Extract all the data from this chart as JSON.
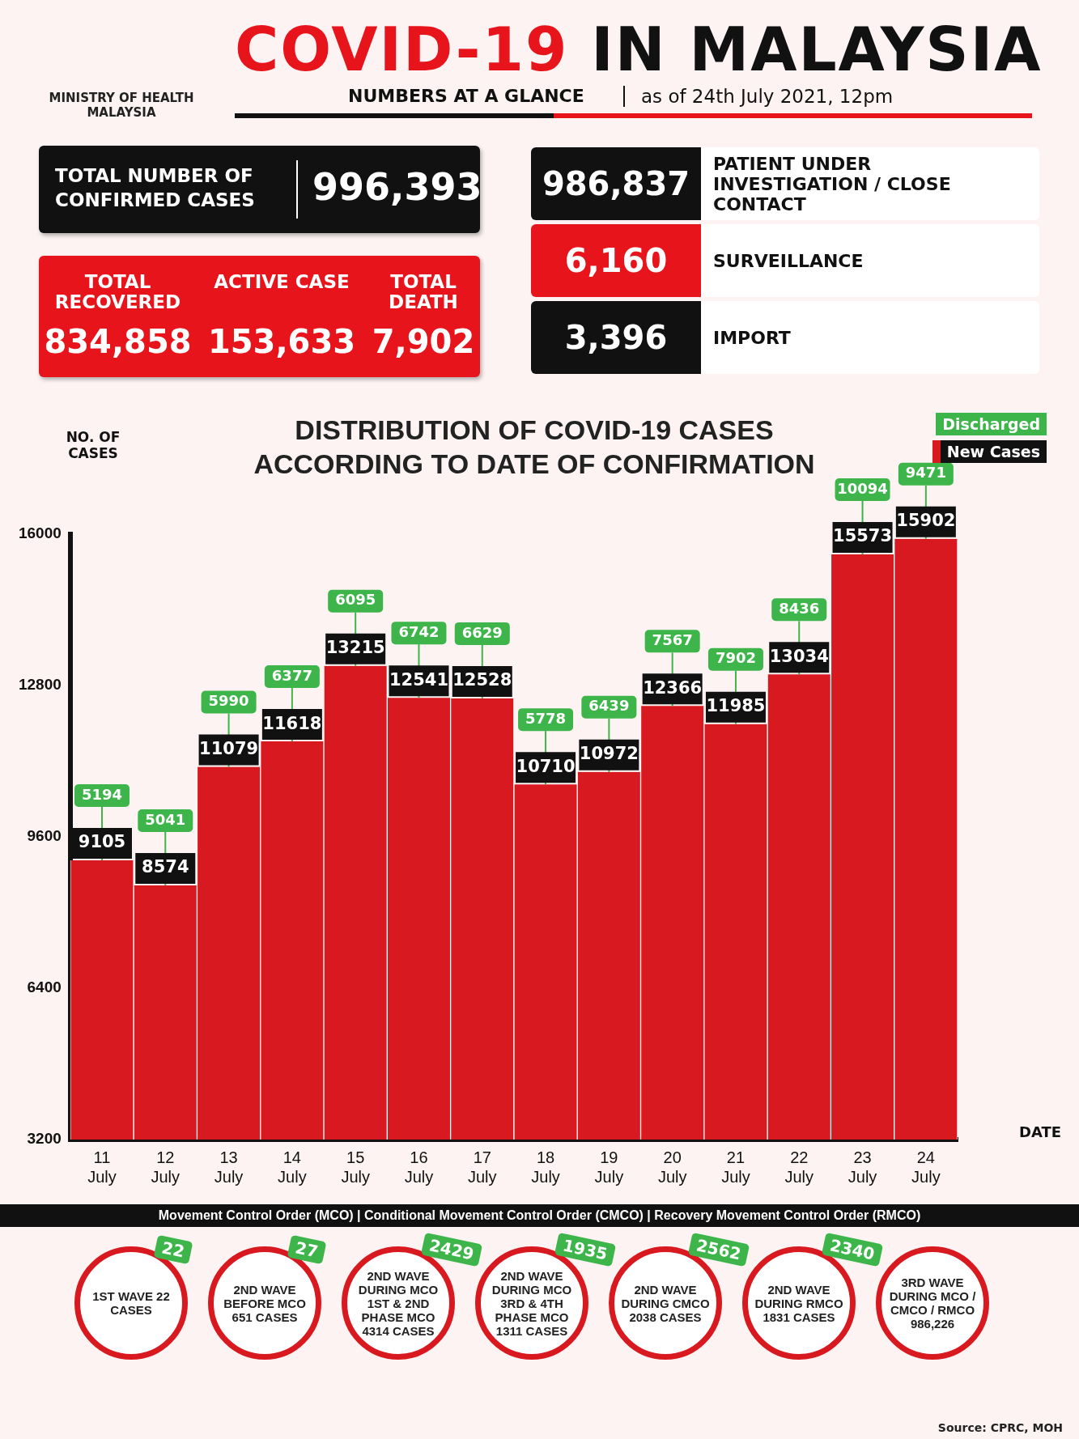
{
  "chart_data": [
    {
      "type": "other",
      "title": "COVID-19 IN MALAYSIA",
      "subtitle": "NUMBERS AT A GLANCE",
      "annotations": [
        "as of 24th July 2021, 12pm",
        "MINISTRY OF HEALTH MALAYSIA"
      ],
      "categories": [
        "TOTAL NUMBER OF CONFIRMED CASES",
        "TOTAL RECOVERED",
        "ACTIVE CASE",
        "TOTAL DEATH",
        "PATIENT UNDER INVESTIGATION / CLOSE CONTACT",
        "SURVEILLANCE",
        "IMPORT"
      ],
      "value_labels": [
        "996,393",
        "834,858",
        "153,633",
        "7,902",
        "986,837",
        "6,160",
        "3,396"
      ]
    },
    {
      "type": "bar",
      "title": "DISTRIBUTION OF COVID-19 CASES ACCORDING TO DATE OF CONFIRMATION",
      "xlabel": "DATE",
      "ylabel": "NO. OF CASES",
      "categories": [
        "11 July",
        "12 July",
        "13 July",
        "14 July",
        "15 July",
        "16 July",
        "17 July",
        "18 July",
        "19 July",
        "20 July",
        "21 July",
        "22 July",
        "23 July",
        "24 July"
      ],
      "series": [
        {
          "name": "New Cases",
          "color": "#d8191f",
          "values": [
            9105,
            8574,
            11079,
            11618,
            13215,
            12541,
            12528,
            10710,
            10972,
            12366,
            11985,
            13034,
            15573,
            15902
          ]
        }
      ],
      "annotations": [
        "Discharged",
        {
          "text": "5194",
          "x": "11 July",
          "y": 9105
        },
        {
          "text": "5041",
          "x": "12 July",
          "y": 8574
        },
        {
          "text": "5990",
          "x": "13 July",
          "y": 11079
        },
        {
          "text": "6377",
          "x": "14 July",
          "y": 11618
        },
        {
          "text": "6095",
          "x": "15 July",
          "y": 13215
        },
        {
          "text": "6742",
          "x": "16 July",
          "y": 12541
        },
        {
          "text": "6629",
          "x": "17 July",
          "y": 12528
        },
        {
          "text": "5778",
          "x": "18 July",
          "y": 10710
        },
        {
          "text": "6439",
          "x": "19 July",
          "y": 10972
        },
        {
          "text": "7567",
          "x": "20 July",
          "y": 12366
        },
        {
          "text": "7902",
          "x": "21 July",
          "y": 11985
        },
        {
          "text": "8436",
          "x": "22 July",
          "y": 13034
        },
        {
          "text": "10094",
          "x": "23 July",
          "y": 15573
        },
        {
          "text": "9471",
          "x": "24 July",
          "y": 15902
        }
      ],
      "ylim": [
        3200,
        16000
      ],
      "yticks": [
        3200,
        6400,
        9600,
        12800,
        16000
      ],
      "data_labels": true,
      "legend": "top right",
      "grid": false
    },
    {
      "type": "other",
      "title": "Movement Control Order (MCO) | Conditional Movement Control Order (CMCO) | Recovery Movement Control Order (RMCO)",
      "categories": [
        "1ST WAVE 22 CASES",
        "2ND WAVE BEFORE MCO 651 CASES",
        "2ND WAVE DURING MCO 1ST & 2ND PHASE MCO 4314 CASES",
        "2ND WAVE DURING MCO 3RD & 4TH PHASE MCO 1311 CASES",
        "2ND WAVE DURING CMCO 2038 CASES",
        "2ND WAVE DURING RMCO 1831 CASES",
        "3RD WAVE DURING MCO / CMCO / RMCO 986,226"
      ],
      "values": [
        22,
        27,
        2429,
        1935,
        2562,
        2340,
        null
      ],
      "data_labels": true,
      "annotations": [
        "Source: CPRC, MOH"
      ]
    }
  ]
}
